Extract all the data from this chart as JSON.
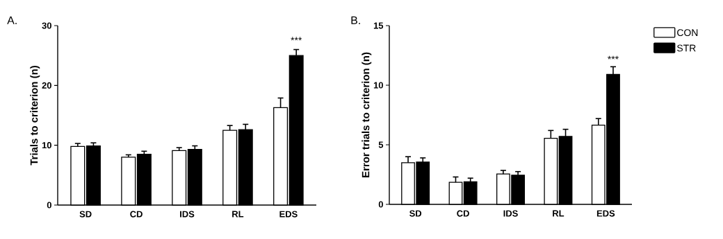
{
  "chart_data": [
    {
      "type": "bar",
      "title": "A.",
      "ylabel": "Trials to criterion (n)",
      "categories": [
        "SD",
        "CD",
        "IDS",
        "RL",
        "EDS"
      ],
      "series": [
        {
          "color": "#ffffff",
          "values": [
            9.8,
            8.0,
            9.1,
            12.5,
            16.3
          ],
          "errors": [
            [
              9.8,
              10.3
            ],
            [
              8.0,
              8.4
            ],
            [
              9.1,
              9.6
            ],
            [
              12.5,
              13.3
            ],
            [
              16.3,
              17.9
            ]
          ]
        },
        {
          "color": "#000000",
          "values": [
            9.9,
            8.5,
            9.3,
            12.6,
            25.0
          ],
          "errors": [
            [
              9.9,
              10.4
            ],
            [
              8.5,
              9.0
            ],
            [
              9.3,
              9.9
            ],
            [
              12.6,
              13.5
            ],
            [
              25.0,
              26.0
            ]
          ]
        }
      ],
      "ylim": [
        0,
        30
      ],
      "yticks": [
        0,
        10,
        20,
        30
      ],
      "grid": false,
      "legend": false,
      "annotations": [
        {
          "text": "***",
          "x": "EDS",
          "y": 25.0
        }
      ]
    },
    {
      "type": "bar",
      "title": "B.",
      "ylabel": "Error trials to criterion (n)",
      "categories": [
        "SD",
        "CD",
        "IDS",
        "RL",
        "EDS"
      ],
      "series": [
        {
          "name": "CON",
          "color": "#ffffff",
          "values": [
            3.5,
            1.85,
            2.55,
            5.55,
            6.65
          ],
          "errors": [
            [
              3.5,
              4.0
            ],
            [
              1.85,
              2.3
            ],
            [
              2.55,
              2.85
            ],
            [
              5.55,
              6.2
            ],
            [
              6.65,
              7.2
            ]
          ]
        },
        {
          "name": "STR",
          "color": "#000000",
          "values": [
            3.55,
            1.9,
            2.45,
            5.7,
            10.9
          ],
          "errors": [
            [
              3.55,
              3.9
            ],
            [
              1.9,
              2.2
            ],
            [
              2.45,
              2.75
            ],
            [
              5.7,
              6.3
            ],
            [
              10.9,
              11.55
            ]
          ]
        }
      ],
      "ylim": [
        0,
        15
      ],
      "yticks": [
        0,
        5,
        10,
        15
      ],
      "grid": false,
      "legend": "top right",
      "annotations": [
        {
          "text": "***",
          "x": "EDS",
          "y": 10.9
        }
      ]
    }
  ]
}
